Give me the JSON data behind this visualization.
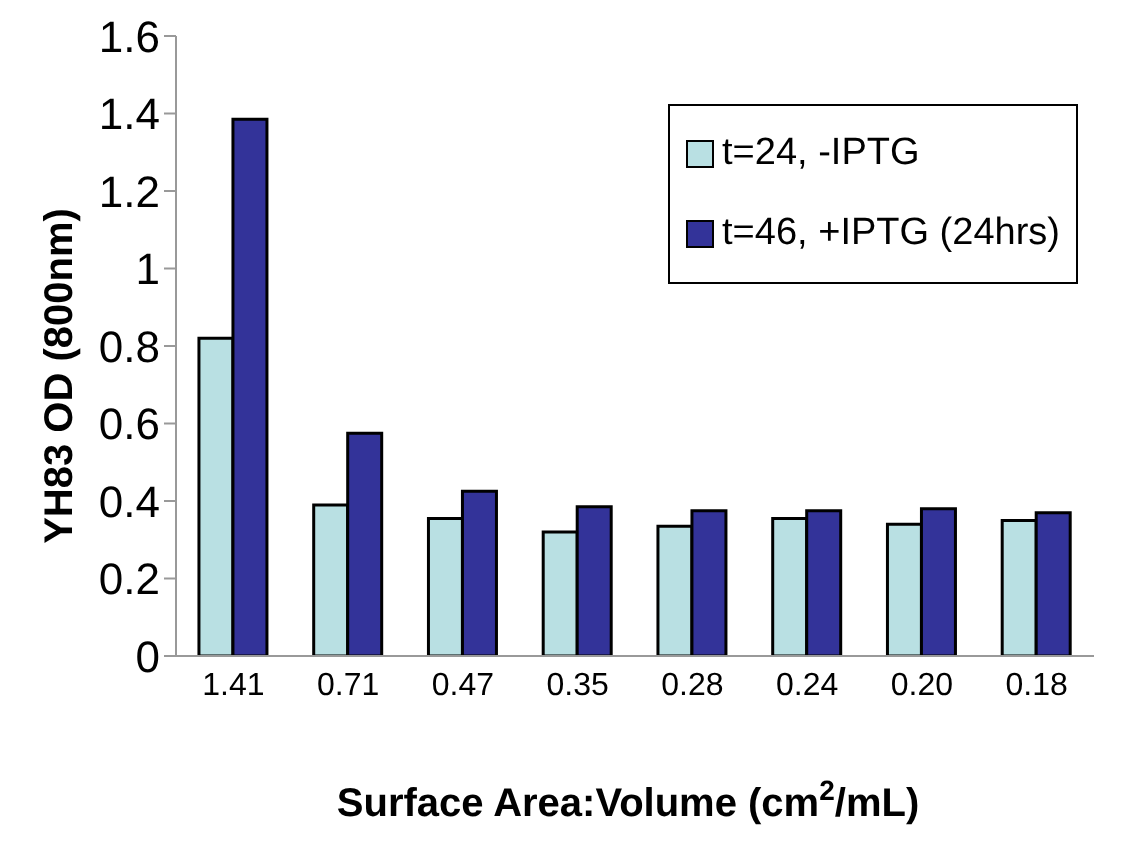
{
  "chart_data": {
    "type": "bar",
    "xlabel": "Surface Area:Volume (cm$^{2}$/mL)",
    "ylabel": "YH83 OD (800nm)",
    "categories": [
      "1.41",
      "0.71",
      "0.47",
      "0.35",
      "0.28",
      "0.24",
      "0.20",
      "0.18"
    ],
    "series": [
      {
        "name": "t=24, -IPTG",
        "color": "#b9e0e3",
        "values": [
          0.82,
          0.39,
          0.355,
          0.32,
          0.335,
          0.355,
          0.34,
          0.35
        ]
      },
      {
        "name": "t=46, +IPTG (24hrs)",
        "color": "#333399",
        "values": [
          1.385,
          0.575,
          0.425,
          0.385,
          0.375,
          0.375,
          0.38,
          0.37
        ]
      }
    ],
    "ylim": [
      0,
      1.6
    ],
    "yticks": [
      0,
      0.2,
      0.4,
      0.6,
      0.8,
      1,
      1.2,
      1.4,
      1.6
    ],
    "grid": false,
    "legend": "top right"
  }
}
